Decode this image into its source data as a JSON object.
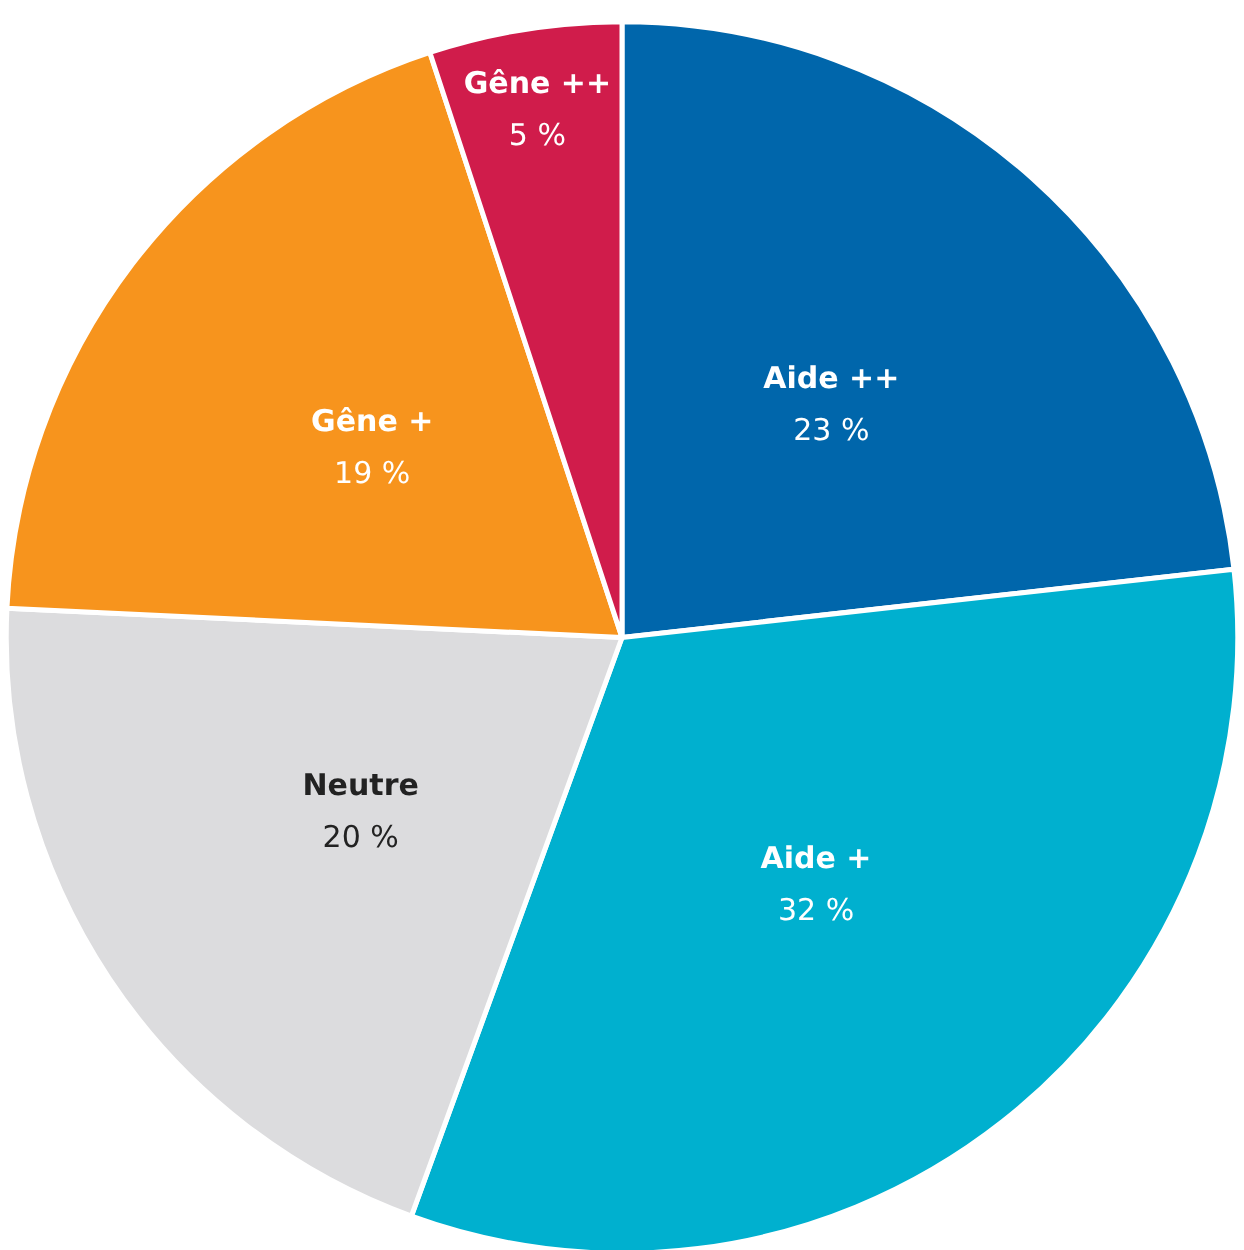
{
  "chart_data": {
    "type": "pie",
    "categories": [
      "Aide ++",
      "Aide +",
      "Neutre",
      "Gêne +",
      "Gêne ++"
    ],
    "values": [
      23,
      32,
      20,
      19,
      5
    ],
    "value_labels": [
      "23 %",
      "32 %",
      "20 %",
      "19 %",
      "5 %"
    ],
    "colors": [
      "#0066ab",
      "#00b0cf",
      "#dcdcde",
      "#f7941d",
      "#d01c4b"
    ],
    "legend": false
  }
}
